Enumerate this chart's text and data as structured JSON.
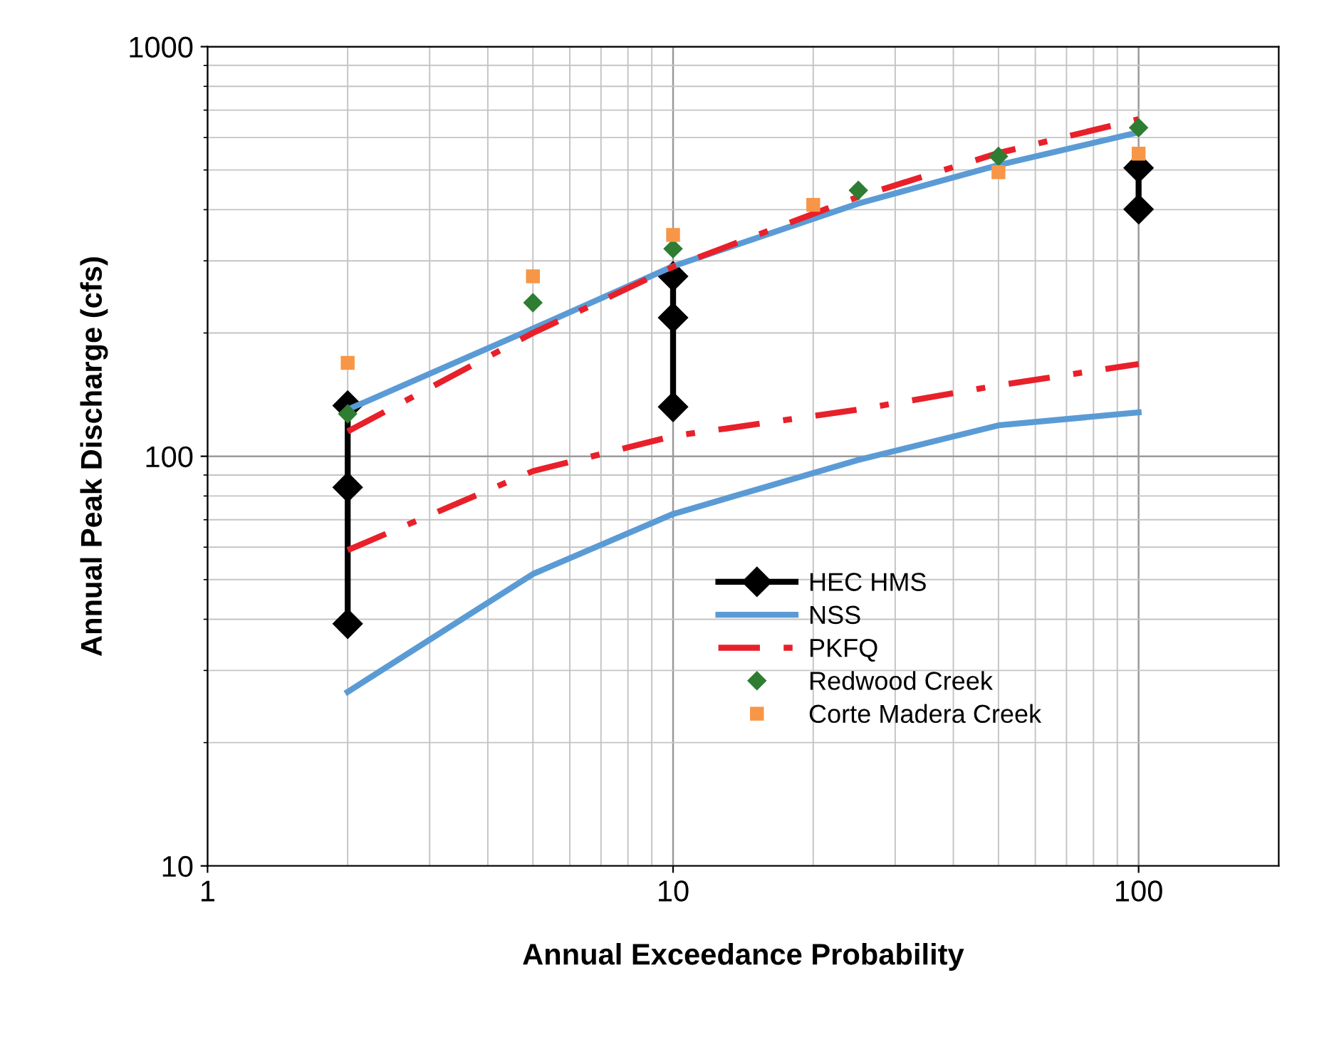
{
  "chart_data": {
    "type": "line",
    "xlabel": "Annual Exceedance Probability",
    "ylabel": "Annual Peak Discharge (cfs)",
    "log": "xy",
    "xlim": [
      1,
      200
    ],
    "ylim": [
      10,
      1000
    ],
    "xticks": [
      1,
      10,
      100
    ],
    "yticks": [
      10,
      100,
      1000
    ],
    "grid": true,
    "legend": "bottom right",
    "series": [
      {
        "name": "HEC HMS",
        "color": "#000000",
        "marker": "diamond",
        "line_style": "solid",
        "x": [
          2,
          2,
          2,
          null,
          10,
          10,
          10,
          null,
          100,
          100
        ],
        "values": [
          39,
          84,
          133,
          null,
          132,
          218,
          275,
          null,
          401,
          506
        ]
      },
      {
        "name": "NSS",
        "color": "#5b9bd5",
        "marker": "none",
        "line_style": "solid",
        "x": [
          2,
          5,
          10,
          25,
          50,
          100
        ],
        "values": [
          130,
          205,
          291,
          414,
          514,
          618
        ]
      },
      {
        "name": "PKFQ",
        "color": "#e8202a",
        "marker": "none",
        "line_style": "dashdot",
        "x": [
          2,
          5,
          10,
          25,
          50,
          100
        ],
        "values": [
          115,
          200,
          290,
          430,
          550,
          665
        ]
      },
      {
        "name": "Redwood Creek",
        "type": "scatter",
        "color": "#2e7d32",
        "marker": "diamond",
        "x": [
          2,
          5,
          10,
          25,
          50,
          100
        ],
        "values": [
          127,
          237,
          321,
          446,
          540,
          634
        ]
      },
      {
        "name": "Corte Madera Creek",
        "type": "scatter",
        "color": "#f79646",
        "marker": "square",
        "x": [
          2,
          5,
          10,
          20,
          50,
          100
        ],
        "values": [
          169,
          275,
          347,
          411,
          494,
          548
        ]
      },
      {
        "color": "#5b9bd5",
        "marker": "none",
        "line_style": "solid",
        "x": [
          2,
          5,
          10,
          25,
          50,
          100
        ],
        "values": [
          26.6,
          51.6,
          72.3,
          98,
          119,
          128
        ]
      },
      {
        "color": "#e8202a",
        "marker": "none",
        "line_style": "dashdot",
        "x": [
          2,
          5,
          10,
          25,
          50,
          100
        ],
        "values": [
          59,
          92,
          112,
          130,
          149,
          168
        ]
      }
    ]
  }
}
